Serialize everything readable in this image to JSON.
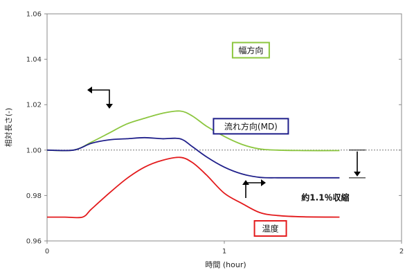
{
  "chart_data": {
    "type": "line",
    "xlabel": "時間 (hour)",
    "ylabel": "相対長さ(-)",
    "xlim": [
      0,
      2
    ],
    "ylim": [
      0.96,
      1.06
    ],
    "xticks": [
      "0",
      "1",
      "2"
    ],
    "yticks": [
      "0.96",
      "0.98",
      "1.00",
      "1.02",
      "1.04",
      "1.06"
    ],
    "reference_line": 1.0,
    "grid": false,
    "series": [
      {
        "name": "幅方向",
        "color": "#8cc63f",
        "x": [
          0,
          0.15,
          0.25,
          0.35,
          0.45,
          0.55,
          0.65,
          0.75,
          0.82,
          0.9,
          1.0,
          1.1,
          1.2,
          1.3,
          1.45,
          1.65
        ],
        "y": [
          1.0,
          1.0,
          1.0035,
          1.0075,
          1.0115,
          1.014,
          1.0162,
          1.0172,
          1.015,
          1.0105,
          1.006,
          1.0025,
          1.0005,
          1.0,
          0.9998,
          0.9998
        ]
      },
      {
        "name": "流れ方向(MD)",
        "color": "#1f1f8a",
        "x": [
          0,
          0.15,
          0.25,
          0.35,
          0.45,
          0.55,
          0.65,
          0.75,
          0.82,
          0.9,
          1.0,
          1.1,
          1.2,
          1.3,
          1.45,
          1.65
        ],
        "y": [
          1.0,
          1.0,
          1.003,
          1.0045,
          1.005,
          1.0055,
          1.005,
          1.005,
          1.0015,
          0.997,
          0.9925,
          0.9895,
          0.988,
          0.9878,
          0.9878,
          0.9878
        ]
      },
      {
        "name": "温度",
        "color": "#e31a1c",
        "x": [
          0,
          0.1,
          0.2,
          0.25,
          0.35,
          0.45,
          0.55,
          0.65,
          0.75,
          0.82,
          0.9,
          1.0,
          1.1,
          1.2,
          1.3,
          1.45,
          1.65
        ],
        "y": [
          0.9705,
          0.9705,
          0.9705,
          0.974,
          0.981,
          0.9875,
          0.9925,
          0.9955,
          0.9968,
          0.9945,
          0.989,
          0.981,
          0.9765,
          0.9725,
          0.9712,
          0.9706,
          0.9705
        ]
      }
    ],
    "legend": [
      {
        "label": "幅方向",
        "border_color": "#8cc63f",
        "x": 1.15,
        "y": 1.044
      },
      {
        "label": "流れ方向(MD)",
        "border_color": "#1f1f8a",
        "x": 1.15,
        "y": 1.0105
      },
      {
        "label": "温度",
        "border_color": "#e31a1c",
        "x": 1.26,
        "y": 0.9655
      }
    ],
    "annotations": [
      {
        "text": "約1.1％収縮",
        "x": 1.57,
        "y": 0.979
      }
    ]
  }
}
